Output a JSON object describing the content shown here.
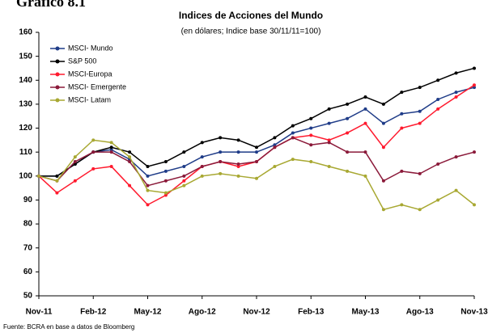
{
  "chart_data": {
    "type": "line",
    "heading": "Gráfico 8.1",
    "title": "Indices de Acciones del Mundo",
    "subtitle": "(en dólares; Indice base 30/11/11=100)",
    "source": "Fuente: BCRA en base a datos de Bloomberg",
    "x": [
      "Nov-11",
      "Dec-11",
      "Jan-12",
      "Feb-12",
      "Mar-12",
      "Apr-12",
      "May-12",
      "Jun-12",
      "Jul-12",
      "Aug-12",
      "Sep-12",
      "Oct-12",
      "Nov-12",
      "Dec-12",
      "Jan-13",
      "Feb-13",
      "Mar-13",
      "Apr-13",
      "May-13",
      "Jun-13",
      "Jul-13",
      "Aug-13",
      "Sep-13",
      "Oct-13",
      "Nov-13"
    ],
    "xticks": [
      "Nov-11",
      "Feb-12",
      "May-12",
      "Ago-12",
      "Nov-12",
      "Feb-13",
      "May-13",
      "Ago-13",
      "Nov-13"
    ],
    "ylim": [
      50,
      160
    ],
    "yticks": [
      50,
      60,
      70,
      80,
      90,
      100,
      110,
      120,
      130,
      140,
      150,
      160
    ],
    "legend": "upper left",
    "series": [
      {
        "name": "MSCI- Mundo",
        "color": "#1f3c88",
        "values": [
          100,
          100,
          105,
          110,
          111,
          107,
          100,
          102,
          104,
          108,
          110,
          110,
          110,
          113,
          118,
          120,
          122,
          124,
          128,
          122,
          126,
          127,
          132,
          135,
          137
        ]
      },
      {
        "name": "S&P 500",
        "color": "#000000",
        "values": [
          100,
          100,
          105,
          110,
          112,
          110,
          104,
          106,
          110,
          114,
          116,
          115,
          112,
          116,
          121,
          124,
          128,
          130,
          133,
          130,
          135,
          137,
          140,
          143,
          145
        ]
      },
      {
        "name": "MSCI-Europa",
        "color": "#ff1a2e",
        "values": [
          100,
          93,
          98,
          103,
          104,
          96,
          88,
          92,
          98,
          104,
          106,
          104,
          106,
          112,
          116,
          117,
          115,
          118,
          122,
          112,
          120,
          122,
          128,
          133,
          138
        ]
      },
      {
        "name": "MSCI- Emergente",
        "color": "#8b1a3a",
        "values": [
          100,
          98,
          106,
          110,
          110,
          106,
          96,
          98,
          100,
          104,
          106,
          105,
          106,
          112,
          116,
          113,
          114,
          110,
          110,
          98,
          102,
          101,
          105,
          108,
          110
        ]
      },
      {
        "name": "MSCI- Latam",
        "color": "#a8a832",
        "values": [
          100,
          98,
          108,
          115,
          114,
          108,
          94,
          93,
          96,
          100,
          101,
          100,
          99,
          104,
          107,
          106,
          104,
          102,
          100,
          86,
          88,
          86,
          90,
          94,
          88
        ]
      }
    ]
  }
}
